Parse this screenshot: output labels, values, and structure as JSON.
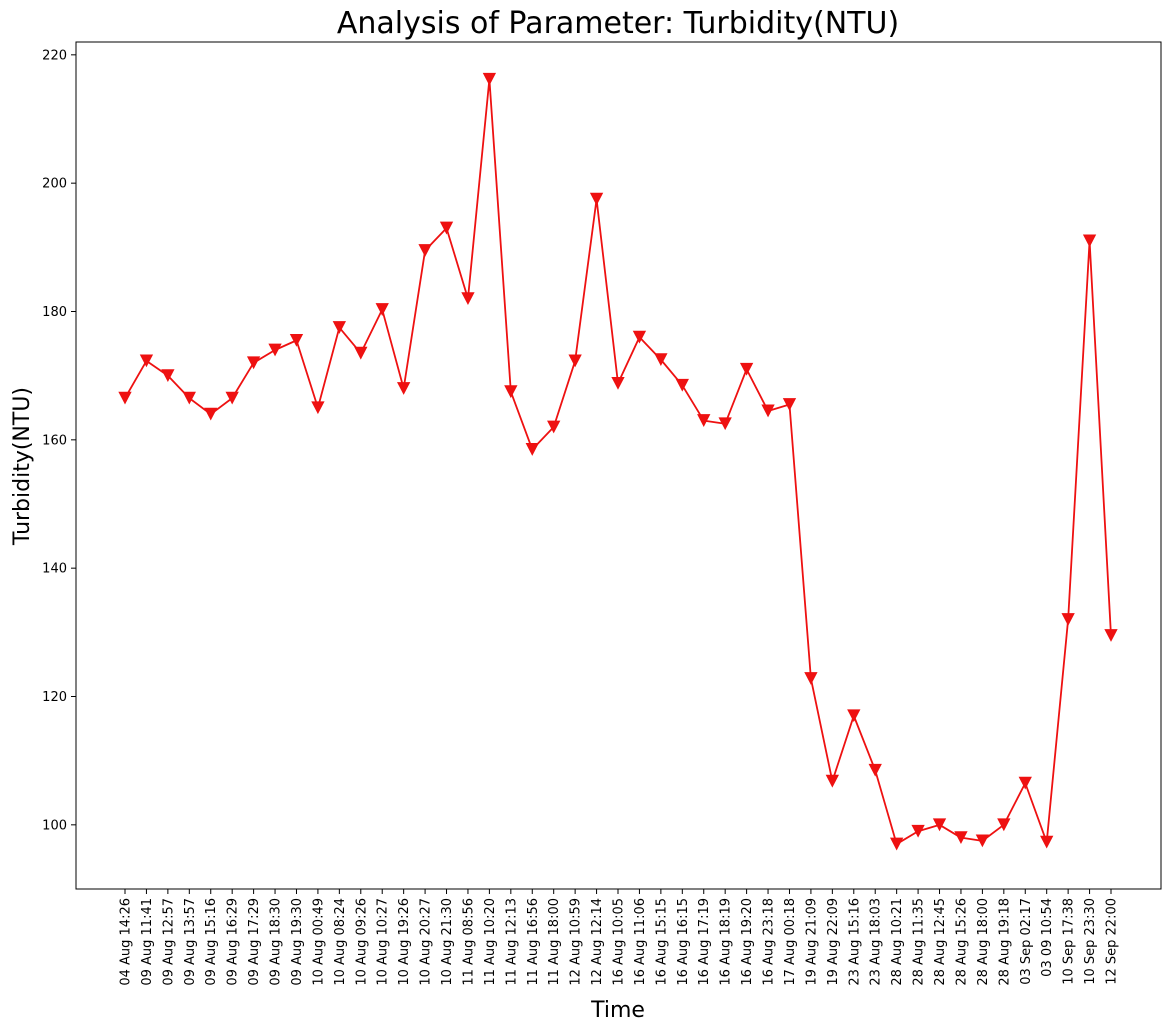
{
  "chart_data": {
    "type": "line",
    "title": "Analysis of Parameter: Turbidity(NTU)",
    "xlabel": "Time",
    "ylabel": "Turbidity(NTU)",
    "ylim": [
      90,
      222
    ],
    "yticks": [
      100,
      120,
      140,
      160,
      180,
      200,
      220
    ],
    "grid": false,
    "marker": "triangle-down",
    "line_color": "#ee1111",
    "categories": [
      "04 Aug 14:26",
      "09 Aug 11:41",
      "09 Aug 12:57",
      "09 Aug 13:57",
      "09 Aug 15:16",
      "09 Aug 16:29",
      "09 Aug 17:29",
      "09 Aug 18:30",
      "09 Aug 19:30",
      "10 Aug 00:49",
      "10 Aug 08:24",
      "10 Aug 09:26",
      "10 Aug 10:27",
      "10 Aug 19:26",
      "10 Aug 20:27",
      "10 Aug 21:30",
      "11 Aug 08:56",
      "11 Aug 10:20",
      "11 Aug 12:13",
      "11 Aug 16:56",
      "11 Aug 18:00",
      "12 Aug 10:59",
      "12 Aug 12:14",
      "16 Aug 10:05",
      "16 Aug 11:06",
      "16 Aug 15:15",
      "16 Aug 16:15",
      "16 Aug 17:19",
      "16 Aug 18:19",
      "16 Aug 19:20",
      "16 Aug 23:18",
      "17 Aug 00:18",
      "19 Aug 21:09",
      "19 Aug 22:09",
      "23 Aug 15:16",
      "23 Aug 18:03",
      "28 Aug 10:21",
      "28 Aug 11:35",
      "28 Aug 12:45",
      "28 Aug 15:26",
      "28 Aug 18:00",
      "28 Aug 19:18",
      "03 Sep 02:17",
      "03 09 10:54",
      "10 Sep 17:38",
      "10 Sep 23:30",
      "12 Sep 22:00"
    ],
    "values": [
      166.5,
      172.3,
      170.0,
      166.5,
      164.0,
      166.5,
      172.0,
      174.0,
      175.5,
      165.0,
      177.5,
      173.5,
      180.3,
      168.0,
      189.5,
      193.0,
      182.0,
      216.2,
      167.5,
      158.5,
      162.0,
      172.3,
      197.5,
      168.8,
      176.0,
      172.5,
      168.5,
      163.0,
      162.5,
      171.0,
      164.5,
      165.5,
      122.8,
      106.8,
      117.0,
      108.5,
      97.0,
      99.0,
      100.0,
      98.0,
      97.5,
      100.0,
      106.5,
      97.3,
      132.0,
      191.0,
      129.5
    ]
  }
}
